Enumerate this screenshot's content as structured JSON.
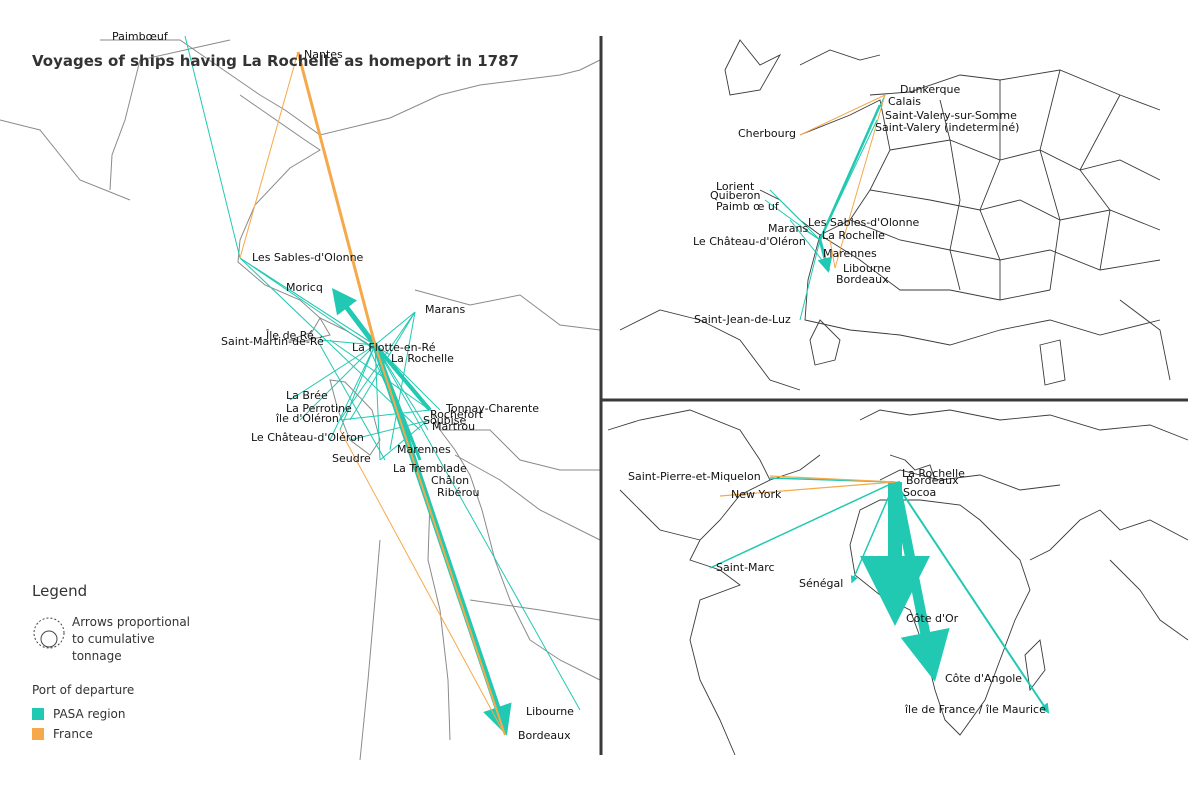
{
  "title": "Voyages of ships having La Rochelle as homeport in 1787",
  "colors": {
    "pasa": "#22c9b2",
    "france": "#f5a94a"
  },
  "legend": {
    "title": "Legend",
    "size_text": "Arrows proportional to cumulative tonnage",
    "departure_title": "Port of departure",
    "items": [
      {
        "label": "PASA region",
        "color": "#22c9b2"
      },
      {
        "label": "France",
        "color": "#f5a94a"
      }
    ]
  },
  "regional_map": {
    "places": [
      {
        "name": "Paimbœuf"
      },
      {
        "name": "Nantes"
      },
      {
        "name": "Les Sables-d'Olonne"
      },
      {
        "name": "Moricq"
      },
      {
        "name": "Marans"
      },
      {
        "name": "Île de Ré"
      },
      {
        "name": "Saint-Martin-de-Ré"
      },
      {
        "name": "La Flotte-en-Ré"
      },
      {
        "name": "La Rochelle"
      },
      {
        "name": "La Brée"
      },
      {
        "name": "La Perrotine"
      },
      {
        "name": "île d'Oléron"
      },
      {
        "name": "Le Château-d'Oléron"
      },
      {
        "name": "Tonnay-Charente"
      },
      {
        "name": "Rochefort"
      },
      {
        "name": "Soubise"
      },
      {
        "name": "Martrou"
      },
      {
        "name": "Marennes"
      },
      {
        "name": "Seudre"
      },
      {
        "name": "La Tremblade"
      },
      {
        "name": "Châlon"
      },
      {
        "name": "Ribérou"
      },
      {
        "name": "Libourne"
      },
      {
        "name": "Bordeaux"
      }
    ]
  },
  "france_map": {
    "places": [
      {
        "name": "Dunkerque"
      },
      {
        "name": "Calais"
      },
      {
        "name": "Saint-Valery-sur-Somme"
      },
      {
        "name": "Saint-Valery (indeterminé)"
      },
      {
        "name": "Cherbourg"
      },
      {
        "name": "Lorient"
      },
      {
        "name": "Quiberon"
      },
      {
        "name": "Paimb  œ uf"
      },
      {
        "name": "Les Sables-d'Olonne"
      },
      {
        "name": "Marans"
      },
      {
        "name": "La Rochelle"
      },
      {
        "name": "Le Château-d'Oléron"
      },
      {
        "name": "Marennes"
      },
      {
        "name": "Libourne"
      },
      {
        "name": "Bordeaux"
      },
      {
        "name": "Saint-Jean-de-Luz"
      }
    ]
  },
  "world_map": {
    "places": [
      {
        "name": "Saint-Pierre-et-Miquelon"
      },
      {
        "name": "New York"
      },
      {
        "name": "La Rochelle"
      },
      {
        "name": "Bordeaux"
      },
      {
        "name": "Socoa"
      },
      {
        "name": "Saint-Marc"
      },
      {
        "name": "Sénégal"
      },
      {
        "name": "Côte d'Or"
      },
      {
        "name": "Côte d'Angole"
      },
      {
        "name": "île de France / île Maurice"
      }
    ]
  }
}
